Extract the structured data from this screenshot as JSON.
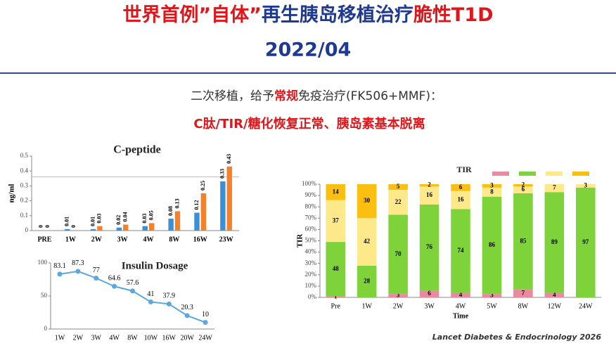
{
  "slide": {
    "title": [
      "世界首例”自体”",
      "再生胰岛移植治疗",
      "脆性T1D"
    ],
    "date": "2022/04",
    "subtitle": [
      "二次移植，给予",
      "常规",
      "免疫治疗(FK506+MMF)："
    ],
    "highlight": "C肽/TIR/糖化恢复正常、胰岛素基本脱离",
    "source": "Lancet Diabetes & Endocrinology 2026"
  },
  "chart_data": [
    {
      "type": "bar",
      "title": "C-peptide",
      "ylabel": "ng/ml",
      "categories": [
        "PRE",
        "1W",
        "2W",
        "3W",
        "4W",
        "8W",
        "16W",
        "23W"
      ],
      "series": [
        {
          "color": "#3a8fd8",
          "values": [
            0,
            0.01,
            0.01,
            0.02,
            0.03,
            0.08,
            0.12,
            0.33
          ]
        },
        {
          "color": "#f4812a",
          "values": [
            0,
            0,
            0.03,
            0.04,
            0.05,
            0.13,
            0.25,
            0.43
          ]
        }
      ],
      "ylim": [
        0,
        0.5
      ],
      "yticks": [
        0,
        0.1,
        0.2,
        0.3,
        0.4,
        0.5
      ],
      "reference_line": 0.36
    },
    {
      "type": "line",
      "title": "Insulin Dosage",
      "categories": [
        "1W",
        "2W",
        "3W",
        "4W",
        "8W",
        "10W",
        "16W",
        "20W",
        "24W"
      ],
      "color": "#5ba7e0",
      "values": [
        83.1,
        87.3,
        77,
        64.6,
        57.6,
        41,
        37.9,
        20.3,
        10
      ],
      "ylim": [
        0,
        100
      ],
      "yticks": [
        0,
        50,
        100
      ]
    },
    {
      "type": "stacked_bar",
      "title": "TIR",
      "ylabel": "TIR",
      "xlabel": "Time",
      "categories": [
        "Pre",
        "1W",
        "2W",
        "3W",
        "4W",
        "5W",
        "8W",
        "12W",
        "24W"
      ],
      "series": [
        {
          "color": "#e88aa0",
          "values": [
            1,
            0,
            3,
            6,
            4,
            3,
            7,
            4,
            0
          ]
        },
        {
          "color": "#7ed23a",
          "values": [
            48,
            28,
            70,
            76,
            74,
            86,
            85,
            89,
            97
          ]
        },
        {
          "color": "#fde98a",
          "values": [
            37,
            42,
            22,
            16,
            16,
            8,
            6,
            7,
            3
          ]
        },
        {
          "color": "#fbbf12",
          "values": [
            14,
            30,
            5,
            2,
            6,
            3,
            2,
            0,
            0
          ]
        }
      ],
      "ylim": [
        0,
        100
      ],
      "yticks": [
        {
          "value": 0,
          "label": "0%"
        },
        {
          "value": 10,
          "label": "10%"
        },
        {
          "value": 20,
          "label": "20%"
        },
        {
          "value": 30,
          "label": "30%"
        },
        {
          "value": 40,
          "label": "40%"
        },
        {
          "value": 50,
          "label": "50%"
        },
        {
          "value": 60,
          "label": "60%"
        },
        {
          "value": 70,
          "label": "70%"
        },
        {
          "value": 80,
          "label": "80%"
        },
        {
          "value": 90,
          "label": "90%"
        },
        {
          "value": 100,
          "label": "100%"
        }
      ]
    }
  ]
}
